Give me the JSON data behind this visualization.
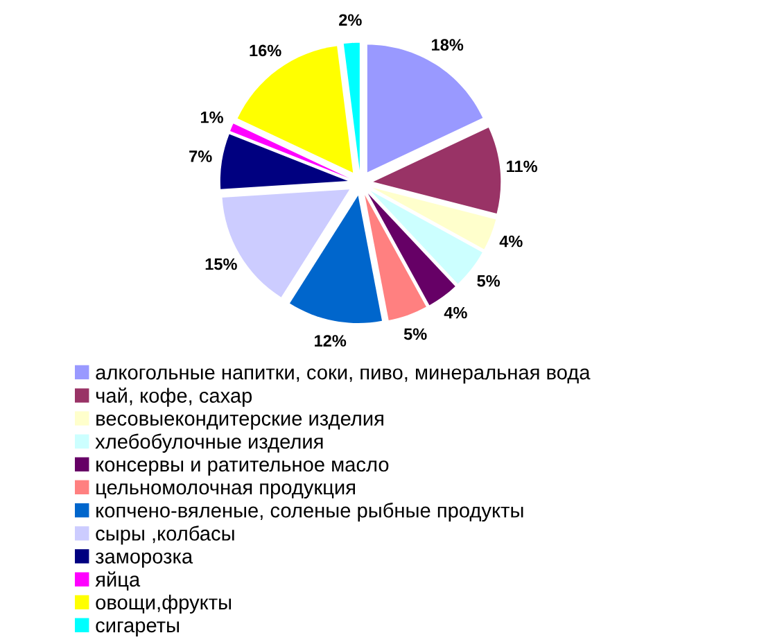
{
  "chart_data": {
    "type": "pie",
    "categories": [
      "алкогольные напитки, соки, пиво, минеральная вода",
      "чай, кофе, сахар",
      "весовыекондитерские изделия",
      "хлебобулочные изделия",
      "консервы и ратительное масло",
      "цельномолочная продукция",
      "копчено-вяленые, соленые рыбные продукты",
      "сыры ,колбасы",
      "заморозка",
      "яйца",
      "овощи,фрукты",
      "сигареты"
    ],
    "values": [
      18,
      11,
      4,
      5,
      4,
      5,
      12,
      15,
      7,
      1,
      16,
      2
    ],
    "value_labels": [
      "18%",
      "11%",
      "4%",
      "5%",
      "4%",
      "5%",
      "12%",
      "15%",
      "7%",
      "1%",
      "16%",
      "2%"
    ],
    "colors": [
      "#9999ff",
      "#993366",
      "#ffffcc",
      "#ccffff",
      "#660066",
      "#ff8080",
      "#0066cc",
      "#ccccff",
      "#000080",
      "#ff00ff",
      "#ffff00",
      "#00ffff"
    ],
    "legend": "bottom"
  }
}
